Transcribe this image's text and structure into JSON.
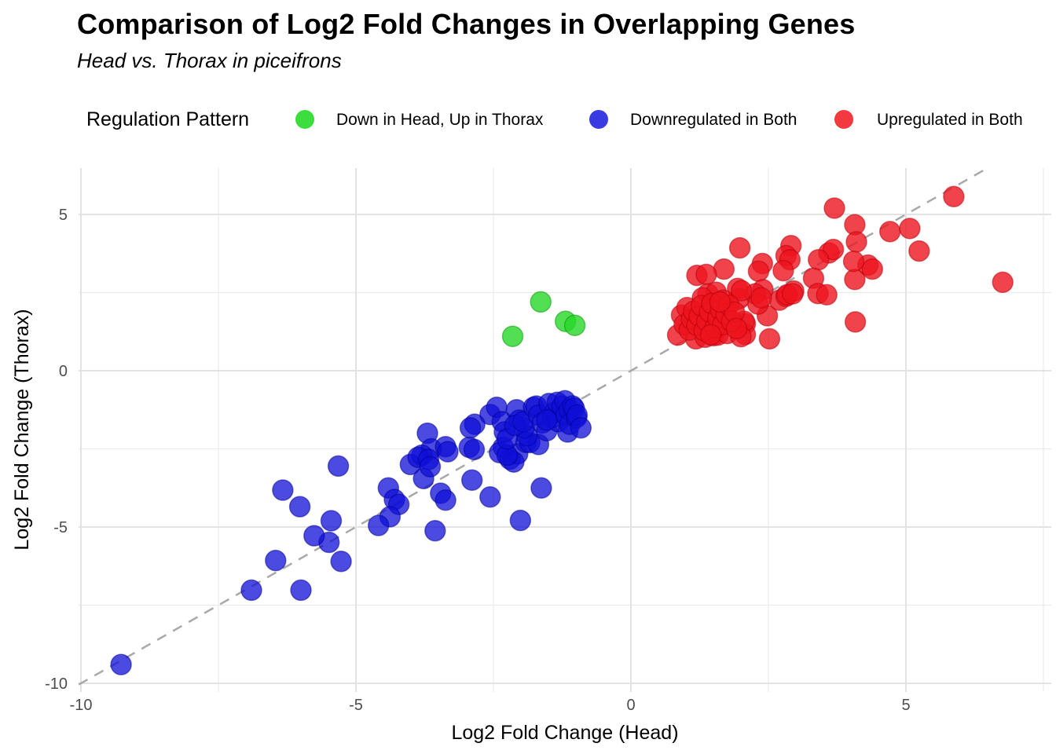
{
  "header": {
    "title": "Comparison of Log2 Fold Changes in Overlapping Genes",
    "subtitle": "Head vs. Thorax in piceifrons"
  },
  "chart_data": {
    "type": "scatter",
    "title": "Comparison of Log2 Fold Changes in Overlapping Genes",
    "subtitle": "Head vs. Thorax in piceifrons",
    "legend_title": "Regulation Pattern",
    "legend_position": "top",
    "xlabel": "Log2 Fold Change (Head)",
    "ylabel": "Log2 Fold Change (Thorax)",
    "xlim": [
      -10.05,
      7.65
    ],
    "ylim": [
      -10.27,
      6.5
    ],
    "x_ticks": [
      -10,
      -5,
      0,
      5
    ],
    "y_ticks": [
      5,
      0,
      -5,
      -10
    ],
    "x_minor_ticks": [
      -7.5,
      -2.5,
      2.5,
      7.5
    ],
    "y_minor_ticks": [
      2.5,
      -2.5,
      -7.5
    ],
    "grid": true,
    "grid_major_color": "#e3e3e3",
    "grid_minor_color": "#ebebeb",
    "identity_line": {
      "equation": "y = x",
      "style": "dashed",
      "color": "#a9a9a9",
      "t_start": -10.04,
      "t_end": 6.48
    },
    "series": [
      {
        "name": "Down in Head, Up in Thorax",
        "color": "#3edd3e",
        "fill": "rgba(40,215,40,0.8)",
        "stroke": "rgba(0,150,0,0.5)",
        "points": [
          [
            -1.64,
            2.2
          ],
          [
            -1.19,
            1.58
          ],
          [
            -1.02,
            1.45
          ],
          [
            -2.15,
            1.1
          ]
        ]
      },
      {
        "name": "Downregulated in Both",
        "color": "#3a3ae2",
        "fill": "rgba(15,15,215,0.75)",
        "stroke": "rgba(0,0,150,0.5)",
        "points": [
          [
            -9.27,
            -9.4
          ],
          [
            -6.9,
            -7.02
          ],
          [
            -6.0,
            -7.02
          ],
          [
            -6.46,
            -6.07
          ],
          [
            -5.27,
            -6.1
          ],
          [
            -5.49,
            -5.49
          ],
          [
            -5.76,
            -5.28
          ],
          [
            -5.45,
            -4.8
          ],
          [
            -6.02,
            -4.35
          ],
          [
            -6.33,
            -3.82
          ],
          [
            -5.32,
            -3.05
          ],
          [
            -4.41,
            -3.75
          ],
          [
            -4.3,
            -4.12
          ],
          [
            -4.22,
            -4.28
          ],
          [
            -4.38,
            -4.67
          ],
          [
            -4.59,
            -4.95
          ],
          [
            -3.56,
            -5.12
          ],
          [
            -3.46,
            -3.92
          ],
          [
            -3.37,
            -4.14
          ],
          [
            -2.89,
            -3.5
          ],
          [
            -2.56,
            -4.04
          ],
          [
            -2.01,
            -4.79
          ],
          [
            -1.63,
            -3.75
          ],
          [
            -4.01,
            -3.0
          ],
          [
            -3.77,
            -3.45
          ],
          [
            -3.7,
            -2.0
          ],
          [
            -3.63,
            -2.5
          ],
          [
            -3.8,
            -2.7
          ],
          [
            -3.87,
            -2.77
          ],
          [
            -3.68,
            -2.84
          ],
          [
            -3.65,
            -3.07
          ],
          [
            -3.37,
            -2.43
          ],
          [
            -3.33,
            -2.59
          ],
          [
            -2.94,
            -2.45
          ],
          [
            -2.85,
            -2.52
          ],
          [
            -2.32,
            -2.45
          ],
          [
            -2.39,
            -2.62
          ],
          [
            -2.2,
            -2.83
          ],
          [
            -2.06,
            -2.66
          ],
          [
            -2.13,
            -2.92
          ],
          [
            -2.25,
            -2.7
          ],
          [
            -1.91,
            -2.29
          ],
          [
            -1.84,
            -2.3
          ],
          [
            -1.68,
            -2.36
          ],
          [
            -1.89,
            -2.08
          ],
          [
            -2.84,
            -1.71
          ],
          [
            -2.92,
            -1.83
          ],
          [
            -2.56,
            -1.4
          ],
          [
            -2.44,
            -1.17
          ],
          [
            -2.34,
            -1.63
          ],
          [
            -2.3,
            -1.96
          ],
          [
            -2.25,
            -2.18
          ],
          [
            -2.08,
            -1.25
          ],
          [
            -2.03,
            -1.58
          ],
          [
            -1.94,
            -1.83
          ],
          [
            -2.11,
            -1.75
          ],
          [
            -1.96,
            -1.63
          ],
          [
            -1.77,
            -1.17
          ],
          [
            -1.72,
            -1.13
          ],
          [
            -1.68,
            -1.42
          ],
          [
            -1.61,
            -1.67
          ],
          [
            -1.53,
            -1.92
          ],
          [
            -1.49,
            -1.05
          ],
          [
            -1.42,
            -1.5
          ],
          [
            -1.39,
            -1.34
          ],
          [
            -1.32,
            -1.63
          ],
          [
            -1.34,
            -1.01
          ],
          [
            -1.25,
            -1.13
          ],
          [
            -1.2,
            -0.96
          ],
          [
            -1.18,
            -1.42
          ],
          [
            -1.15,
            -1.96
          ],
          [
            -1.12,
            -1.25
          ],
          [
            -1.11,
            -1.71
          ],
          [
            -1.06,
            -1.13
          ],
          [
            -1.03,
            -1.2
          ],
          [
            -0.99,
            -1.5
          ],
          [
            -0.98,
            -1.42
          ],
          [
            -0.91,
            -1.83
          ],
          [
            -1.53,
            -1.58
          ]
        ]
      },
      {
        "name": "Upregulated in Both",
        "color": "#f23940",
        "fill": "rgba(238,20,30,0.8)",
        "stroke": "rgba(180,0,10,0.5)",
        "points": [
          [
            5.87,
            5.57
          ],
          [
            3.7,
            5.2
          ],
          [
            4.07,
            4.67
          ],
          [
            4.1,
            4.12
          ],
          [
            4.71,
            4.45
          ],
          [
            5.07,
            4.55
          ],
          [
            5.24,
            3.83
          ],
          [
            6.76,
            2.83
          ],
          [
            4.08,
            1.56
          ],
          [
            4.07,
            2.92
          ],
          [
            4.31,
            3.38
          ],
          [
            4.39,
            3.25
          ],
          [
            4.05,
            3.5
          ],
          [
            3.6,
            3.77
          ],
          [
            3.68,
            3.88
          ],
          [
            3.41,
            3.55
          ],
          [
            3.32,
            2.96
          ],
          [
            3.4,
            2.47
          ],
          [
            3.56,
            2.43
          ],
          [
            2.91,
            4.0
          ],
          [
            2.82,
            3.68
          ],
          [
            2.89,
            3.55
          ],
          [
            2.77,
            3.2
          ],
          [
            2.39,
            3.43
          ],
          [
            2.32,
            3.18
          ],
          [
            1.98,
            3.93
          ],
          [
            1.69,
            3.25
          ],
          [
            1.2,
            3.05
          ],
          [
            1.37,
            3.08
          ],
          [
            2.48,
            1.76
          ],
          [
            2.52,
            1.02
          ],
          [
            2.08,
            1.5
          ],
          [
            2.08,
            1.16
          ],
          [
            1.97,
            2.31
          ],
          [
            2.06,
            1.58
          ],
          [
            2.7,
            2.26
          ],
          [
            2.82,
            2.38
          ],
          [
            2.4,
            2.59
          ],
          [
            2.26,
            2.46
          ],
          [
            2.96,
            2.55
          ],
          [
            2.84,
            2.43
          ],
          [
            2.94,
            2.46
          ],
          [
            1.4,
            2.46
          ],
          [
            1.55,
            2.51
          ],
          [
            1.94,
            2.63
          ],
          [
            2.01,
            2.56
          ],
          [
            1.3,
            2.33
          ],
          [
            1.68,
            2.26
          ],
          [
            2.31,
            2.13
          ],
          [
            2.37,
            2.33
          ],
          [
            0.85,
            1.14
          ],
          [
            1.18,
            1.02
          ],
          [
            1.35,
            1.07
          ],
          [
            1.5,
            1.12
          ],
          [
            1.58,
            1.14
          ],
          [
            1.75,
            1.19
          ],
          [
            2.0,
            1.09
          ],
          [
            0.92,
            1.78
          ],
          [
            0.97,
            1.48
          ],
          [
            1.02,
            2.02
          ],
          [
            1.06,
            1.3
          ],
          [
            1.1,
            1.65
          ],
          [
            1.14,
            1.9
          ],
          [
            1.2,
            1.45
          ],
          [
            1.24,
            1.75
          ],
          [
            1.28,
            2.08
          ],
          [
            1.33,
            1.28
          ],
          [
            1.38,
            1.58
          ],
          [
            1.43,
            1.88
          ],
          [
            1.47,
            2.15
          ],
          [
            1.53,
            1.38
          ],
          [
            1.58,
            1.68
          ],
          [
            1.63,
            1.95
          ],
          [
            1.67,
            1.48
          ],
          [
            1.73,
            1.8
          ],
          [
            1.78,
            2.1
          ],
          [
            1.83,
            1.58
          ],
          [
            1.88,
            1.88
          ],
          [
            1.92,
            1.35
          ],
          [
            1.62,
            2.2
          ],
          [
            1.45,
            1.15
          ]
        ]
      }
    ]
  }
}
